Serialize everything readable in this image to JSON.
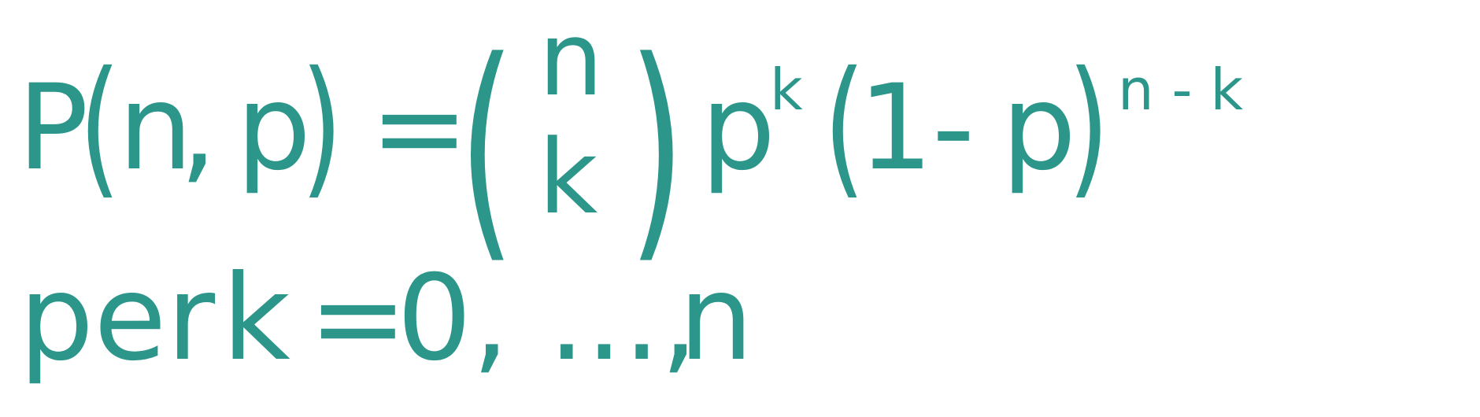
{
  "formula": {
    "line1": {
      "P": "P",
      "open_paren_1": "(",
      "n": "n",
      "comma": ",",
      "p": "p",
      "close_paren_1": ")",
      "equals": "=",
      "binom_open": "(",
      "binom_top": "n",
      "binom_bottom": "k",
      "binom_close": ")",
      "p2": "p",
      "sup_k": "k",
      "open_paren_2": "(",
      "one": "1",
      "minus": "-",
      "p3": "p",
      "close_paren_2": ")",
      "sup_nk": "n - k"
    },
    "line2": {
      "per": "per",
      "k": "k",
      "equals": "=",
      "zero": "0,",
      "ellipsis": "...,",
      "n": "n"
    },
    "color": "#2d968b"
  }
}
